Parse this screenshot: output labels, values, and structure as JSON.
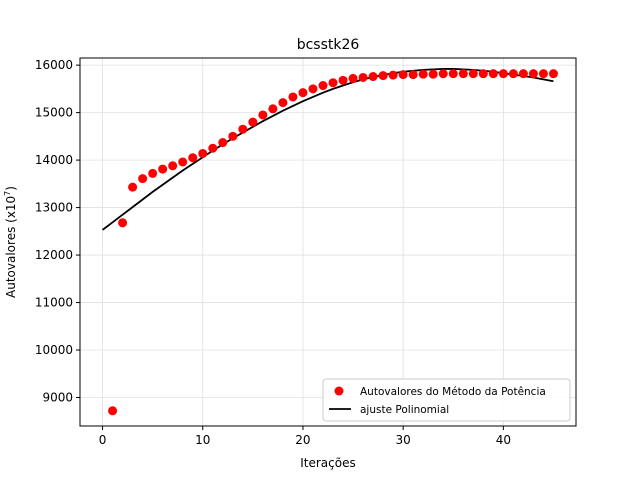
{
  "chart_data": {
    "type": "scatter",
    "title": "bcsstk26",
    "xlabel": "Iterações",
    "ylabel_prefix": "Autovalores (x10",
    "ylabel_exp": "7",
    "ylabel_suffix": ")",
    "xlim": [
      -2.25,
      47.25
    ],
    "ylim": [
      8400,
      16150
    ],
    "xticks": [
      0,
      10,
      20,
      30,
      40
    ],
    "yticks": [
      9000,
      10000,
      11000,
      12000,
      13000,
      14000,
      15000,
      16000
    ],
    "grid": true,
    "legend_position": "lower-right",
    "series": [
      {
        "name": "Autovalores do Método da Potência",
        "kind": "scatter",
        "color": "#ff0000",
        "x": [
          1,
          2,
          3,
          4,
          5,
          6,
          7,
          8,
          9,
          10,
          11,
          12,
          13,
          14,
          15,
          16,
          17,
          18,
          19,
          20,
          21,
          22,
          23,
          24,
          25,
          26,
          27,
          28,
          29,
          30,
          31,
          32,
          33,
          34,
          35,
          36,
          37,
          38,
          39,
          40,
          41,
          42,
          43,
          44,
          45
        ],
        "y": [
          8720,
          12680,
          13430,
          13610,
          13720,
          13810,
          13880,
          13960,
          14050,
          14140,
          14250,
          14370,
          14500,
          14650,
          14800,
          14950,
          15080,
          15210,
          15330,
          15420,
          15500,
          15570,
          15630,
          15680,
          15720,
          15740,
          15760,
          15780,
          15790,
          15800,
          15800,
          15810,
          15810,
          15820,
          15820,
          15820,
          15820,
          15820,
          15820,
          15820,
          15820,
          15820,
          15820,
          15820,
          15820
        ]
      },
      {
        "name": "ajuste Polinomial",
        "kind": "line",
        "color": "#000000",
        "x": [
          0,
          1,
          2,
          3,
          4,
          5,
          6,
          7,
          8,
          9,
          10,
          11,
          12,
          13,
          14,
          15,
          16,
          17,
          18,
          19,
          20,
          21,
          22,
          23,
          24,
          25,
          26,
          27,
          28,
          29,
          30,
          31,
          32,
          33,
          34,
          35,
          36,
          37,
          38,
          39,
          40,
          41,
          42,
          43,
          44,
          45
        ],
        "y": [
          12530,
          12690,
          12850,
          13010,
          13170,
          13330,
          13480,
          13630,
          13780,
          13920,
          14060,
          14200,
          14330,
          14460,
          14580,
          14700,
          14820,
          14930,
          15040,
          15140,
          15240,
          15330,
          15420,
          15500,
          15570,
          15640,
          15700,
          15750,
          15790,
          15830,
          15860,
          15880,
          15900,
          15910,
          15920,
          15920,
          15910,
          15900,
          15880,
          15860,
          15830,
          15800,
          15770,
          15740,
          15700,
          15660
        ]
      }
    ]
  }
}
